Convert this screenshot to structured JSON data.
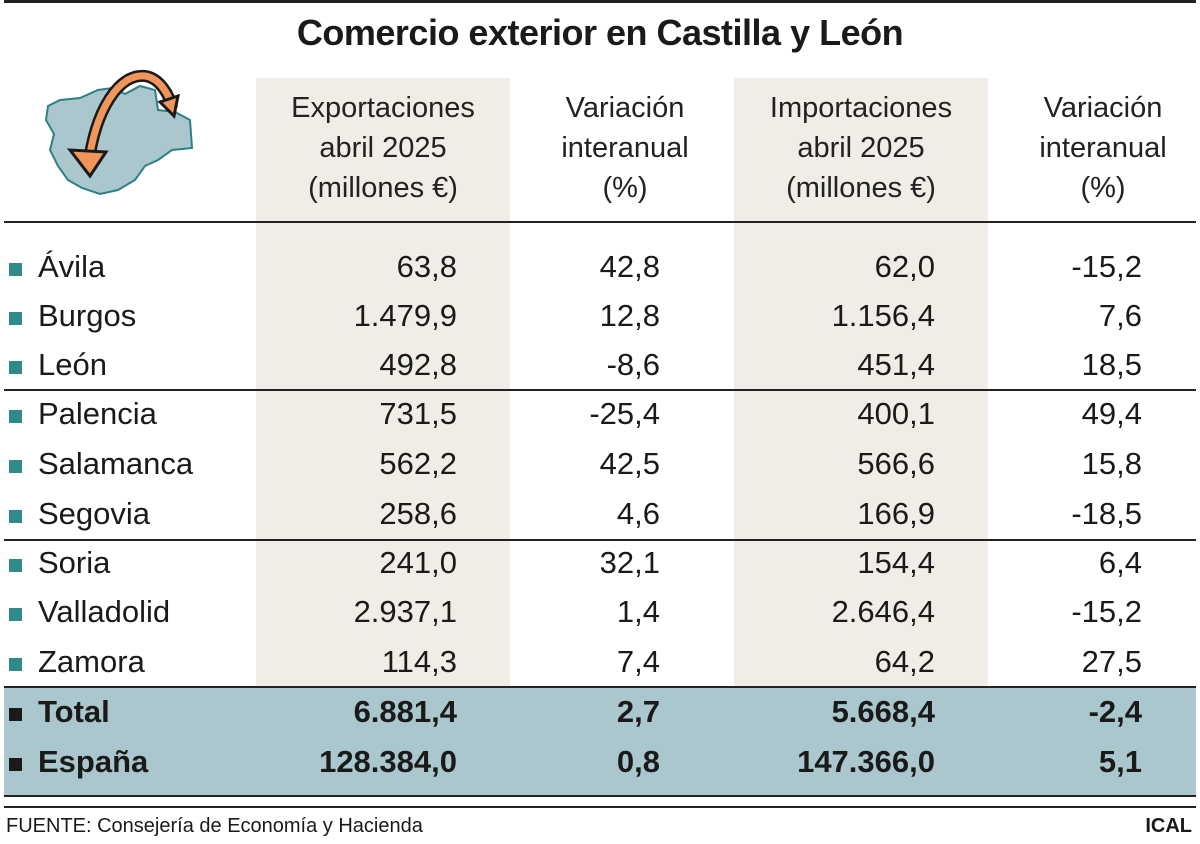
{
  "title": "Comercio exterior en Castilla y León",
  "colors": {
    "accent": "#2f8a8a",
    "total_band": "#a9c7cc",
    "column_shade": "#efede6",
    "arrow": "#f0965a",
    "map": "#a9c7cc"
  },
  "icon": "castilla-leon-map-with-arrow-icon",
  "chart_data": {
    "type": "table",
    "title": "Comercio exterior en Castilla y León",
    "columns": [
      "Exportaciones abril 2025 (millones €)",
      "Variación interanual (%)",
      "Importaciones abril 2025 (millones €)",
      "Variación interanual (%)"
    ],
    "column_lines": [
      [
        "Exportaciones",
        "abril 2025",
        "(millones €)"
      ],
      [
        "Variación",
        "interanual",
        "(%)"
      ],
      [
        "Importaciones",
        "abril 2025",
        "(millones €)"
      ],
      [
        "Variación",
        "interanual",
        "(%)"
      ]
    ],
    "rows": [
      {
        "label": "Ávila",
        "values": [
          "63,8",
          "42,8",
          "62,0",
          "-15,2"
        ]
      },
      {
        "label": "Burgos",
        "values": [
          "1.479,9",
          "12,8",
          "1.156,4",
          "7,6"
        ]
      },
      {
        "label": "León",
        "values": [
          "492,8",
          "-8,6",
          "451,4",
          "18,5"
        ]
      },
      {
        "label": "Palencia",
        "values": [
          "731,5",
          "-25,4",
          "400,1",
          "49,4"
        ]
      },
      {
        "label": "Salamanca",
        "values": [
          "562,2",
          "42,5",
          "566,6",
          "15,8"
        ]
      },
      {
        "label": "Segovia",
        "values": [
          "258,6",
          "4,6",
          "166,9",
          "-18,5"
        ]
      },
      {
        "label": "Soria",
        "values": [
          "241,0",
          "32,1",
          "154,4",
          "6,4"
        ]
      },
      {
        "label": "Valladolid",
        "values": [
          "2.937,1",
          "1,4",
          "2.646,4",
          "-15,2"
        ]
      },
      {
        "label": "Zamora",
        "values": [
          "114,3",
          "7,4",
          "64,2",
          "27,5"
        ]
      },
      {
        "label": "Total",
        "values": [
          "6.881,4",
          "2,7",
          "5.668,4",
          "-2,4"
        ]
      },
      {
        "label": "España",
        "values": [
          "128.384,0",
          "0,8",
          "147.366,0",
          "5,1"
        ]
      }
    ]
  },
  "footer": {
    "source": "FUENTE: Consejería de Economía y Hacienda",
    "credit": "ICAL"
  }
}
